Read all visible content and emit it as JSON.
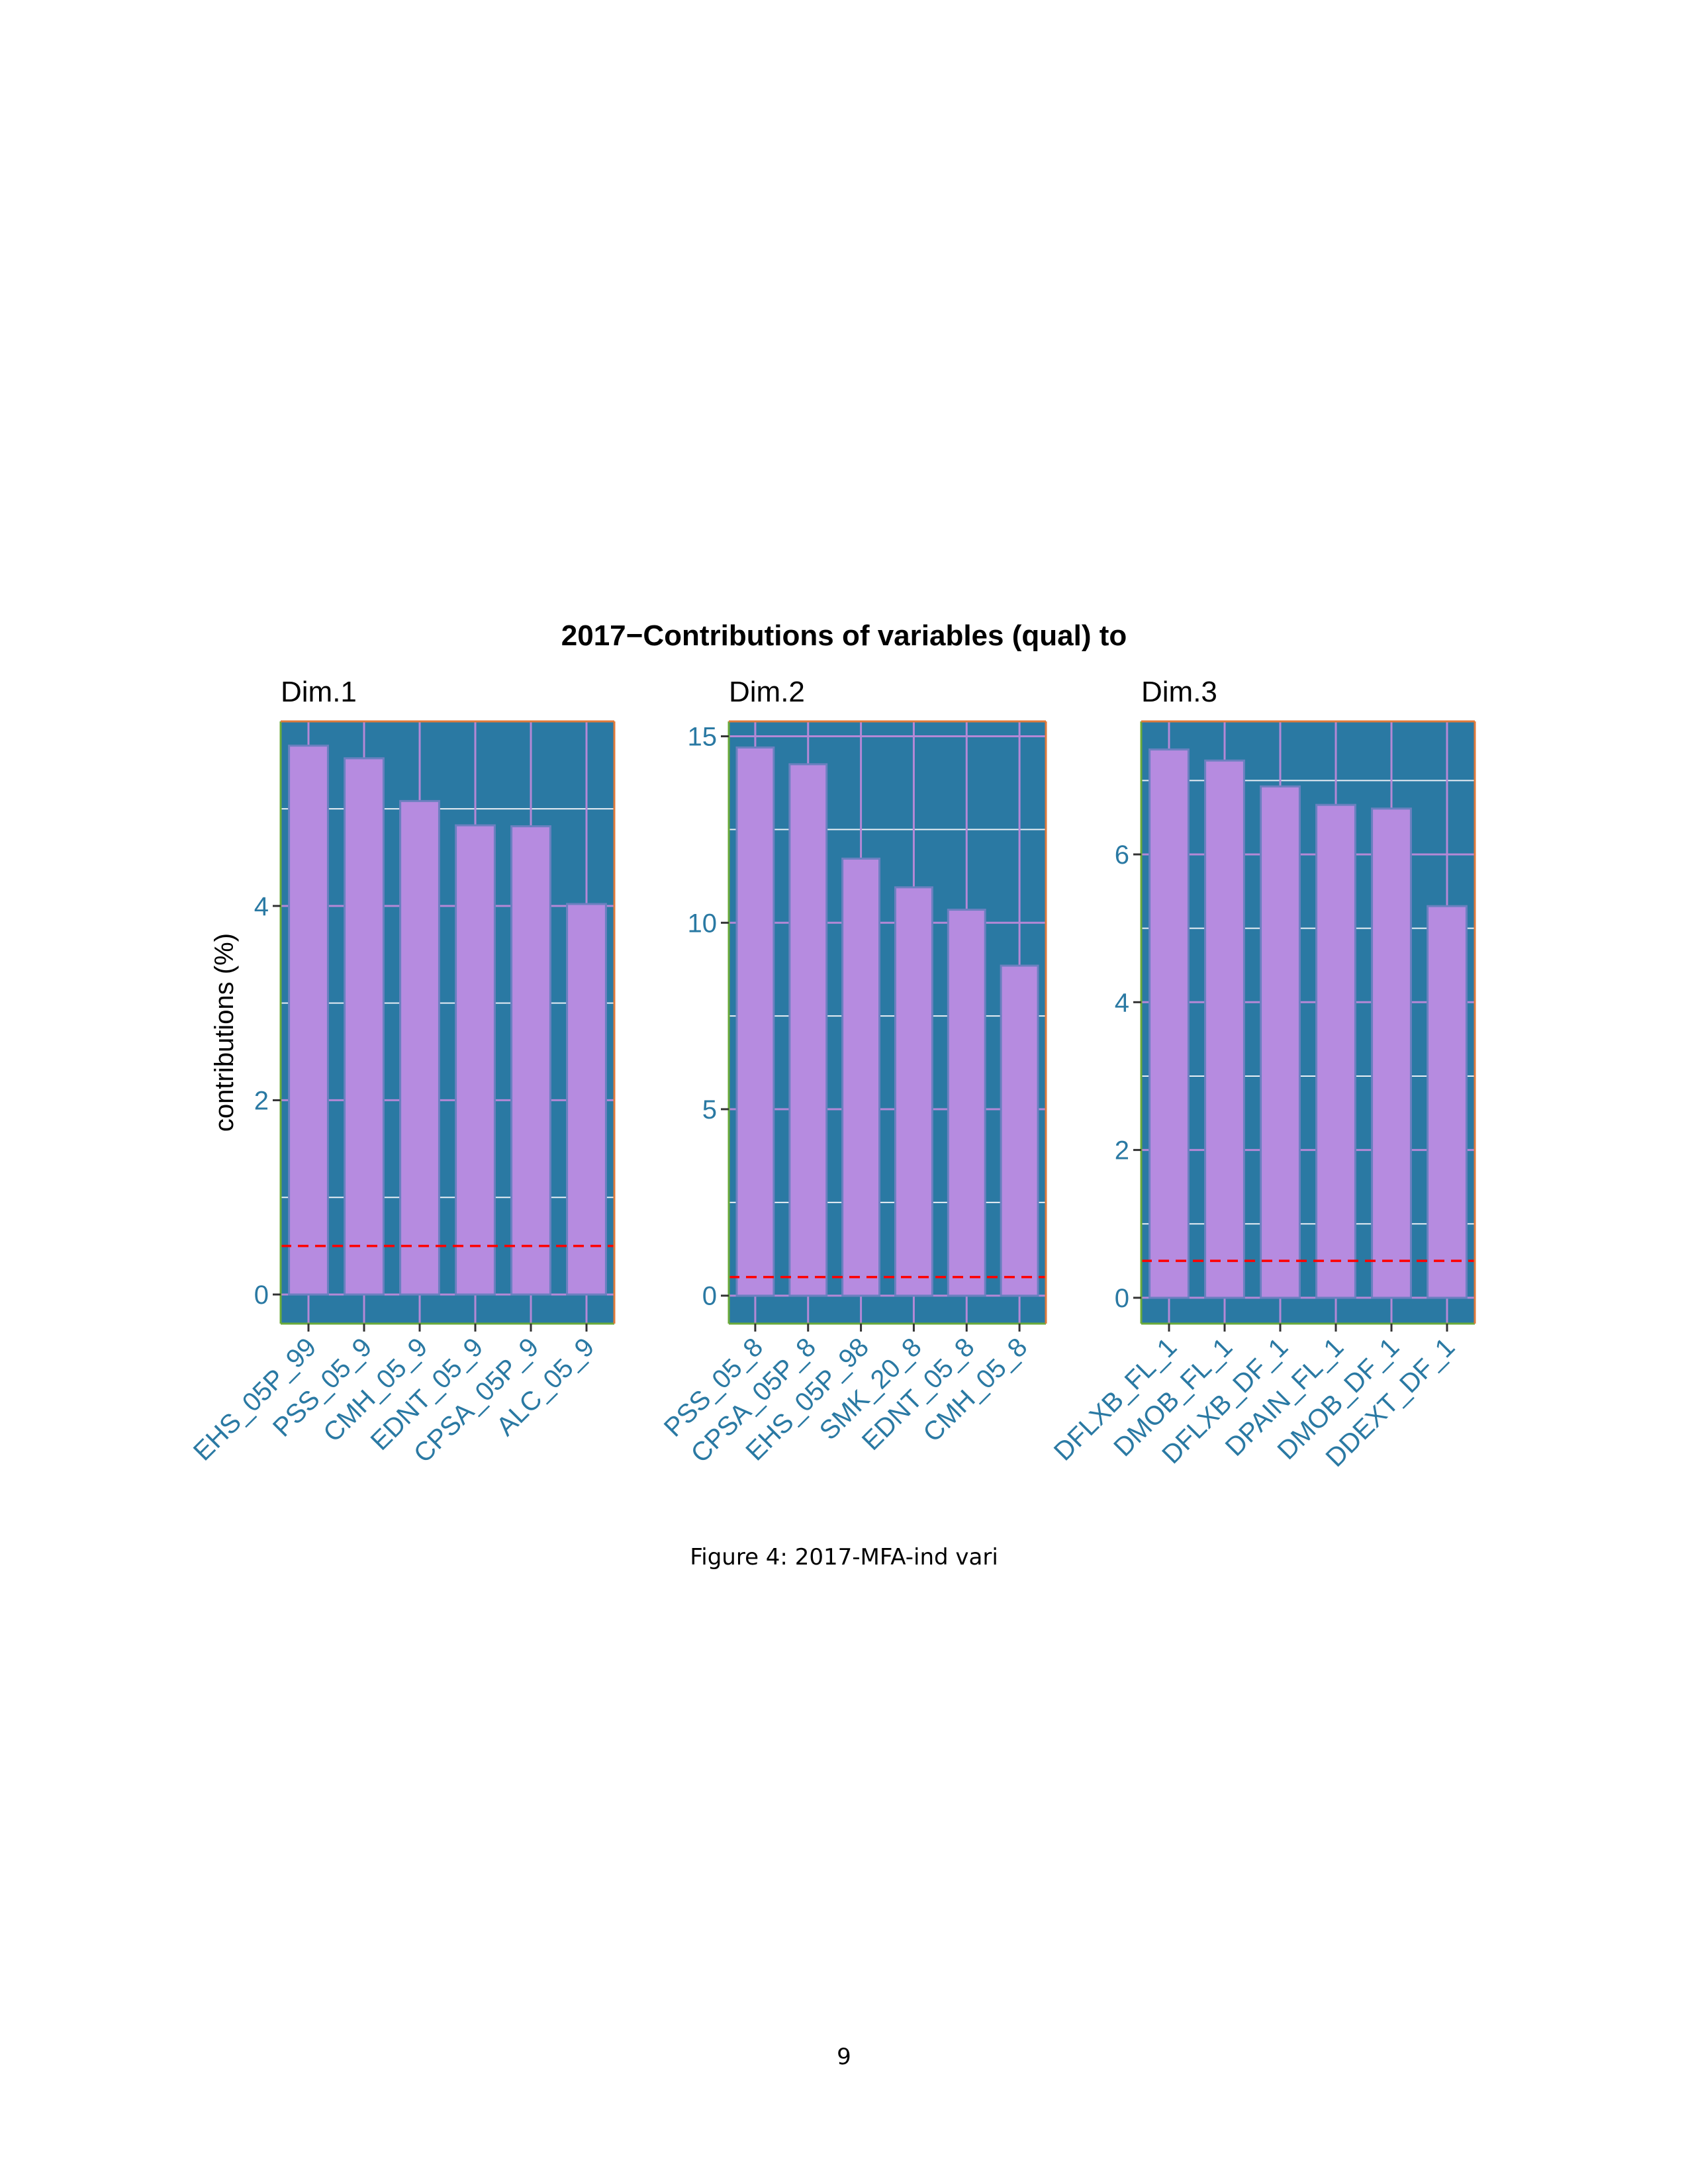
{
  "chart_data": {
    "type": "bar",
    "title": "2017−Contributions of variables (qual) to",
    "ylabel": "contributions (%)",
    "xlabel": "",
    "reference_line": {
      "value": 0.5,
      "color": "#ff0000",
      "style": "dashed"
    },
    "colors": {
      "panel_background": "#2a79a3",
      "bar_fill": "#b68be0",
      "bar_border": "#6b80c0",
      "major_grid": "#b488d6",
      "minor_grid": "#e8eef4",
      "tick_label": "#2a79a3",
      "panel_border_left": "#6aaa3a",
      "panel_border_top": "#e07a3a"
    },
    "grid": true,
    "legend": "none",
    "panels": [
      {
        "subtitle": "Dim.1",
        "ylim": [
          -0.3,
          5.9
        ],
        "yticks": [
          0,
          2,
          4
        ],
        "ytick_labels": [
          "0",
          "2",
          "4"
        ],
        "categories": [
          "EHS_05P_99",
          "PSS_05_9",
          "CMH_05_9",
          "EDNT_05_9",
          "CPSA_05P_9",
          "ALC_05_9"
        ],
        "values": [
          5.65,
          5.52,
          5.08,
          4.83,
          4.82,
          4.02
        ]
      },
      {
        "subtitle": "Dim.2",
        "ylim": [
          -0.75,
          15.4
        ],
        "yticks": [
          0,
          5,
          10,
          15
        ],
        "ytick_labels": [
          "0",
          "5",
          "10",
          "15"
        ],
        "categories": [
          "PSS_05_8",
          "CPSA_05P_8",
          "EHS_05P_98",
          "SMK_20_8",
          "EDNT_05_8",
          "CMH_05_8"
        ],
        "values": [
          14.7,
          14.25,
          11.72,
          10.95,
          10.35,
          8.85
        ]
      },
      {
        "subtitle": "Dim.3",
        "ylim": [
          -0.35,
          7.8
        ],
        "yticks": [
          0,
          2,
          4,
          6
        ],
        "ytick_labels": [
          "0",
          "2",
          "4",
          "6"
        ],
        "categories": [
          "DFLXB_FL_1",
          "DMOB_FL_1",
          "DFLXB_DF_1",
          "DPAIN_FL_1",
          "DMOB_DF_1",
          "DDEXT_DF_1"
        ],
        "values": [
          7.42,
          7.27,
          6.92,
          6.67,
          6.62,
          5.3
        ]
      }
    ]
  },
  "caption": "Figure 4: 2017-MFA-ind vari",
  "page_number": "9"
}
